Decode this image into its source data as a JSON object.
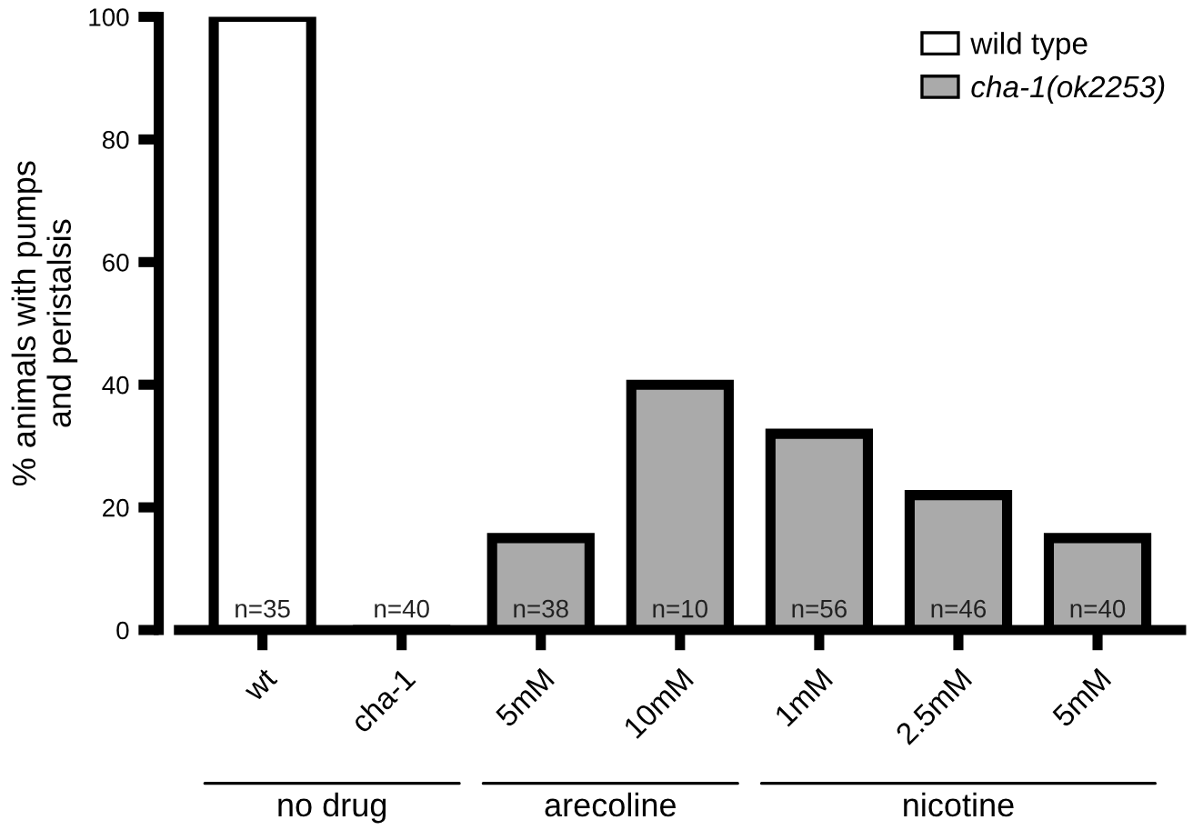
{
  "chart_data": {
    "type": "bar",
    "ylabel": "% animals with pumps\nand peristalsis",
    "categories": [
      "wt",
      "cha-1",
      "5mM",
      "10mM",
      "1mM",
      "2.5mM",
      "5mM"
    ],
    "series": [
      {
        "name": "wild type",
        "color": "#ffffff",
        "values": [
          100,
          null,
          null,
          null,
          null,
          null,
          null
        ]
      },
      {
        "name": "cha-1(ok2253)",
        "color": "#aaaaaa",
        "values": [
          null,
          0,
          15,
          40,
          32,
          22,
          15
        ]
      }
    ],
    "ylim": [
      0,
      100
    ],
    "yticks": [
      0,
      20,
      40,
      60,
      80,
      100
    ],
    "annotations": [
      "n=35",
      "n=40",
      "n=38",
      "n=10",
      "n=56",
      "n=46",
      "n=40",
      "no drug",
      "arecoline",
      "nicotine"
    ],
    "legend": "top right",
    "grid": false
  }
}
